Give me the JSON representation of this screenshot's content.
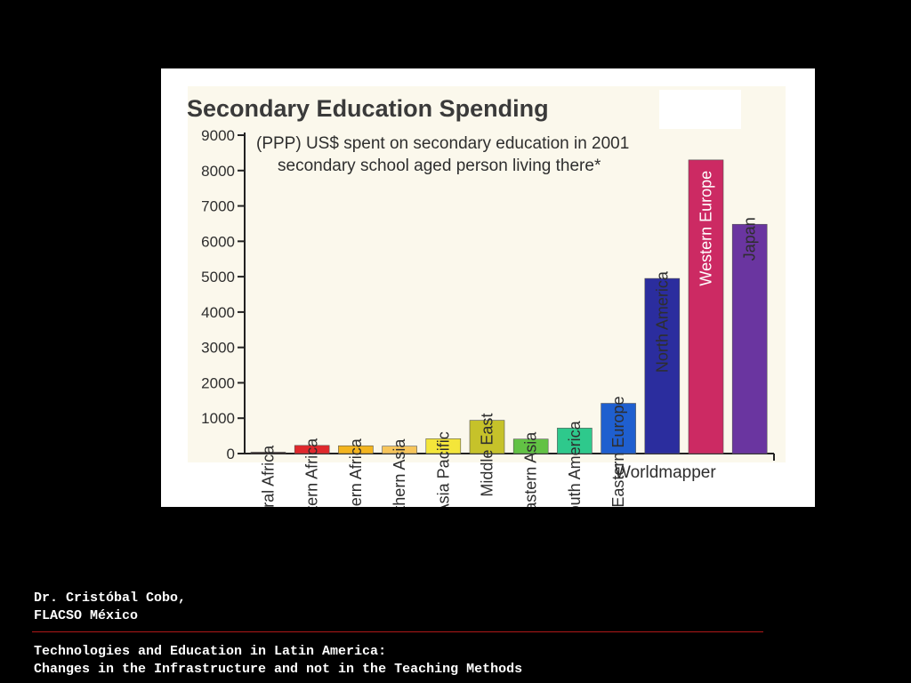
{
  "chart_data": {
    "type": "bar",
    "title": "Secondary Education Spending",
    "subtitle_lines": [
      "(PPP) US$ spent on secondary education in 2001",
      "secondary school aged person living there*"
    ],
    "credit": "Worldmapper",
    "xlabel": "",
    "ylabel": "",
    "ylim": [
      0,
      9000
    ],
    "yticks": [
      0,
      1000,
      2000,
      3000,
      4000,
      5000,
      6000,
      7000,
      8000,
      9000
    ],
    "grid": false,
    "categories": [
      "Central Africa",
      "Southeastern Africa",
      "Northern Africa",
      "Southern Asia",
      "Asia Pacific",
      "Middle East",
      "Eastern Asia",
      "South America",
      "Eastern Europe",
      "North America",
      "Western Europe",
      "Japan"
    ],
    "values": [
      30,
      230,
      220,
      210,
      420,
      940,
      410,
      720,
      1420,
      4950,
      8300,
      6480
    ],
    "colors": [
      "#2a1a1a",
      "#e0282c",
      "#f3b41e",
      "#f7c55a",
      "#f4e63a",
      "#c6c22a",
      "#62c244",
      "#2ec98c",
      "#1f5fcf",
      "#2b2d9e",
      "#cc2a63",
      "#6a35a0"
    ],
    "label_inside_bar": [
      false,
      false,
      false,
      false,
      false,
      false,
      false,
      false,
      false,
      false,
      true,
      false
    ]
  },
  "footer": {
    "author_lines": [
      "Dr. Cristóbal Cobo,",
      "FLACSO México"
    ],
    "title_lines": [
      "Technologies and Education in Latin America:",
      "Changes in the Infrastructure and not in the Teaching Methods"
    ]
  }
}
